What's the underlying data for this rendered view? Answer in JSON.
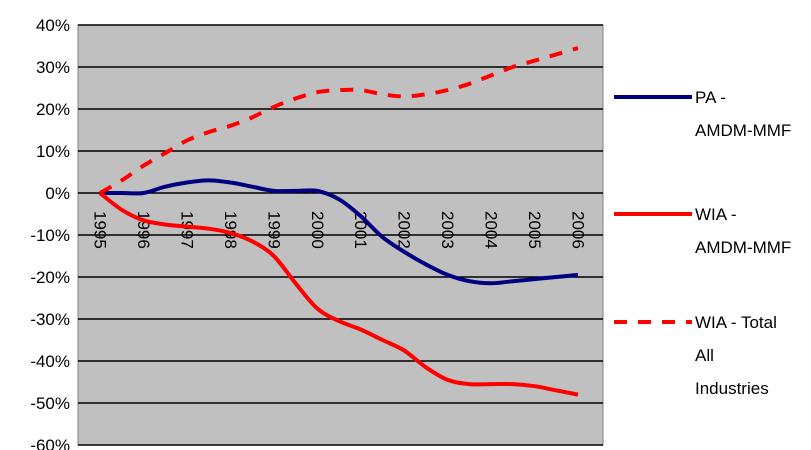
{
  "chart_data": {
    "type": "line",
    "categories": [
      "1995",
      "1996",
      "1997",
      "1998",
      "1999",
      "2000",
      "2001",
      "2002",
      "2003",
      "2004",
      "2005",
      "2006"
    ],
    "y_tick_labels": [
      "40%",
      "30%",
      "20%",
      "10%",
      "0%",
      "-10%",
      "-20%",
      "-30%",
      "-40%",
      "-50%",
      "-60%"
    ],
    "ylim": [
      -60,
      40
    ],
    "grid": true,
    "plot_background": "#C0C0C0",
    "legend_position": "right",
    "series": [
      {
        "name_lines": [
          "PA -",
          "AMDM-MMF"
        ],
        "color": "#000080",
        "dash": "solid",
        "x": [
          1995,
          1995.5,
          1996,
          1996.5,
          1997,
          1997.5,
          1998,
          1998.5,
          1999,
          1999.5,
          2000,
          2000.5,
          2001,
          2001.5,
          2002,
          2002.5,
          2003,
          2003.5,
          2004,
          2004.5,
          2005,
          2005.5,
          2006
        ],
        "values": [
          0,
          0,
          0,
          1.5,
          2.5,
          3,
          2.5,
          1.5,
          0.5,
          0.5,
          0.5,
          -1.5,
          -5.5,
          -10.5,
          -14,
          -17,
          -19.5,
          -21,
          -21.5,
          -21,
          -20.5,
          -20,
          -19.5
        ]
      },
      {
        "name_lines": [
          "WIA -",
          "AMDM-MMF"
        ],
        "color": "#FF0000",
        "dash": "solid",
        "x": [
          1995,
          1995.5,
          1996,
          1996.5,
          1997,
          1997.5,
          1998,
          1998.5,
          1999,
          1999.5,
          2000,
          2000.5,
          2001,
          2001.5,
          2002,
          2002.5,
          2003,
          2003.5,
          2004,
          2004.5,
          2005,
          2005.5,
          2006
        ],
        "values": [
          0,
          -4,
          -6.5,
          -7.5,
          -8,
          -8.5,
          -9.5,
          -11.5,
          -15,
          -21.5,
          -27.5,
          -30.5,
          -32.5,
          -35,
          -37.5,
          -41.5,
          -44.5,
          -45.5,
          -45.5,
          -45.5,
          -46,
          -47,
          -48
        ]
      },
      {
        "name_lines": [
          "WIA - Total",
          "All",
          "Industries"
        ],
        "color": "#FF0000",
        "dash": "dashed",
        "x": [
          1995,
          1995.5,
          1996,
          1996.5,
          1997,
          1997.5,
          1998,
          1998.5,
          1999,
          1999.5,
          2000,
          2000.5,
          2001,
          2001.5,
          2002,
          2002.5,
          2003,
          2003.5,
          2004,
          2004.5,
          2005,
          2005.5,
          2006
        ],
        "values": [
          0,
          3,
          6.5,
          9.5,
          12.5,
          14.5,
          16,
          18,
          20.5,
          22.5,
          24,
          24.5,
          24.5,
          23.5,
          23,
          23.5,
          24.5,
          26,
          28,
          30,
          31.5,
          33,
          34.5
        ]
      }
    ]
  }
}
